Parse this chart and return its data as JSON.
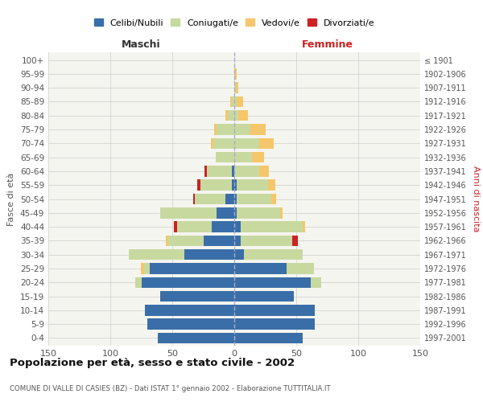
{
  "age_groups": [
    "0-4",
    "5-9",
    "10-14",
    "15-19",
    "20-24",
    "25-29",
    "30-34",
    "35-39",
    "40-44",
    "45-49",
    "50-54",
    "55-59",
    "60-64",
    "65-69",
    "70-74",
    "75-79",
    "80-84",
    "85-89",
    "90-94",
    "95-99",
    "100+"
  ],
  "birth_years": [
    "1997-2001",
    "1992-1996",
    "1987-1991",
    "1982-1986",
    "1977-1981",
    "1972-1976",
    "1967-1971",
    "1962-1966",
    "1957-1961",
    "1952-1956",
    "1947-1951",
    "1942-1946",
    "1937-1941",
    "1932-1936",
    "1927-1931",
    "1922-1926",
    "1917-1921",
    "1912-1916",
    "1907-1911",
    "1902-1906",
    "≤ 1901"
  ],
  "males": {
    "celibi": [
      62,
      70,
      72,
      60,
      75,
      68,
      40,
      25,
      18,
      14,
      7,
      2,
      2,
      0,
      0,
      0,
      0,
      0,
      0,
      0,
      0
    ],
    "coniugati": [
      0,
      0,
      0,
      0,
      5,
      5,
      45,
      28,
      28,
      46,
      25,
      25,
      20,
      15,
      17,
      14,
      5,
      2,
      0,
      0,
      0
    ],
    "vedovi": [
      0,
      0,
      0,
      0,
      0,
      2,
      0,
      2,
      0,
      0,
      0,
      0,
      0,
      0,
      2,
      2,
      2,
      1,
      0,
      0,
      0
    ],
    "divorziati": [
      0,
      0,
      0,
      0,
      0,
      0,
      0,
      0,
      3,
      0,
      1,
      3,
      2,
      0,
      0,
      0,
      0,
      0,
      0,
      0,
      0
    ]
  },
  "females": {
    "nubili": [
      55,
      65,
      65,
      48,
      62,
      42,
      8,
      5,
      5,
      2,
      2,
      2,
      0,
      0,
      0,
      0,
      0,
      0,
      0,
      0,
      0
    ],
    "coniugate": [
      0,
      0,
      0,
      0,
      8,
      22,
      47,
      42,
      50,
      35,
      28,
      25,
      20,
      14,
      20,
      13,
      3,
      2,
      1,
      0,
      0
    ],
    "vedove": [
      0,
      0,
      0,
      0,
      0,
      0,
      0,
      0,
      2,
      2,
      4,
      6,
      8,
      10,
      12,
      12,
      8,
      5,
      2,
      2,
      0
    ],
    "divorziate": [
      0,
      0,
      0,
      0,
      0,
      0,
      0,
      4,
      0,
      0,
      0,
      0,
      0,
      0,
      0,
      0,
      0,
      0,
      0,
      0,
      0
    ]
  },
  "colors": {
    "celibi_nubili": "#3A6EA8",
    "coniugati": "#C8D9A0",
    "vedovi": "#F5C76A",
    "divorziati": "#CC2222"
  },
  "xlim": 150,
  "title": "Popolazione per età, sesso e stato civile - 2002",
  "subtitle": "COMUNE DI VALLE DI CASIES (BZ) - Dati ISTAT 1° gennaio 2002 - Elaborazione TUTTITALIA.IT",
  "xlabel_left": "Maschi",
  "xlabel_right": "Femmine",
  "ylabel_left": "Fasce di età",
  "ylabel_right": "Anni di nascita",
  "legend_labels": [
    "Celibi/Nubili",
    "Coniugati/e",
    "Vedovi/e",
    "Divorziati/e"
  ],
  "background_color": "#ffffff",
  "plot_bg": "#f5f5f0"
}
